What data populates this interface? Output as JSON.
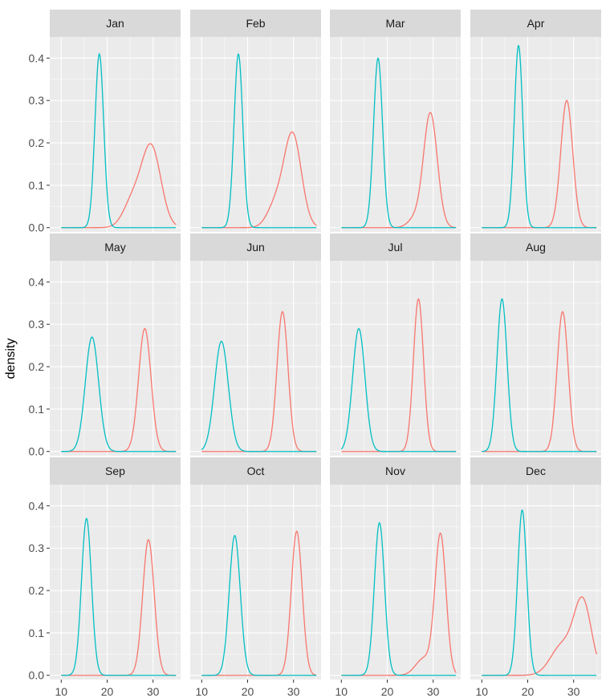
{
  "chart_data": {
    "type": "line",
    "chart_kind": "faceted density plot",
    "ylabel": "density",
    "xlabel": "",
    "xlim": [
      7.5,
      36
    ],
    "ylim": [
      -0.01,
      0.45
    ],
    "x_ticks": [
      10,
      20,
      30
    ],
    "y_ticks": [
      0.0,
      0.1,
      0.2,
      0.3,
      0.4
    ],
    "y_tick_labels": [
      "0.0",
      "0.1",
      "0.2",
      "0.3",
      "0.4"
    ],
    "x_support": [
      10,
      35
    ],
    "grid": true,
    "legend": "none",
    "colors": {
      "red_series": "#F8766D",
      "teal_series": "#00BFC4"
    },
    "facets": [
      {
        "label": "Jan",
        "series": [
          {
            "color": "#00BFC4",
            "peak_x": 18.3,
            "peak_y": 0.41,
            "sd": 0.95,
            "shoulder": null
          },
          {
            "color": "#F8766D",
            "peak_x": 29.6,
            "peak_y": 0.19,
            "sd": 2.1,
            "shoulder": {
              "x": 25.5,
              "y": 0.06,
              "sd": 2.0
            }
          }
        ]
      },
      {
        "label": "Feb",
        "series": [
          {
            "color": "#00BFC4",
            "peak_x": 18.0,
            "peak_y": 0.41,
            "sd": 0.95,
            "shoulder": null
          },
          {
            "color": "#F8766D",
            "peak_x": 29.8,
            "peak_y": 0.22,
            "sd": 1.9,
            "shoulder": {
              "x": 26.0,
              "y": 0.05,
              "sd": 1.8
            }
          }
        ]
      },
      {
        "label": "Mar",
        "series": [
          {
            "color": "#00BFC4",
            "peak_x": 18.0,
            "peak_y": 0.4,
            "sd": 0.98,
            "shoulder": null
          },
          {
            "color": "#F8766D",
            "peak_x": 29.4,
            "peak_y": 0.27,
            "sd": 1.5,
            "shoulder": {
              "x": 26.0,
              "y": 0.02,
              "sd": 1.5
            }
          }
        ]
      },
      {
        "label": "Apr",
        "series": [
          {
            "color": "#00BFC4",
            "peak_x": 18.0,
            "peak_y": 0.43,
            "sd": 0.92,
            "shoulder": null
          },
          {
            "color": "#F8766D",
            "peak_x": 28.5,
            "peak_y": 0.3,
            "sd": 1.3,
            "shoulder": null
          }
        ]
      },
      {
        "label": "May",
        "series": [
          {
            "color": "#00BFC4",
            "peak_x": 16.7,
            "peak_y": 0.27,
            "sd": 1.45,
            "shoulder": null
          },
          {
            "color": "#F8766D",
            "peak_x": 28.2,
            "peak_y": 0.29,
            "sd": 1.35,
            "shoulder": null
          }
        ]
      },
      {
        "label": "Jun",
        "series": [
          {
            "color": "#00BFC4",
            "peak_x": 14.3,
            "peak_y": 0.26,
            "sd": 1.5,
            "shoulder": null
          },
          {
            "color": "#F8766D",
            "peak_x": 27.6,
            "peak_y": 0.33,
            "sd": 1.2,
            "shoulder": null
          }
        ]
      },
      {
        "label": "Jul",
        "series": [
          {
            "color": "#00BFC4",
            "peak_x": 13.8,
            "peak_y": 0.29,
            "sd": 1.35,
            "shoulder": null
          },
          {
            "color": "#F8766D",
            "peak_x": 26.8,
            "peak_y": 0.36,
            "sd": 1.1,
            "shoulder": null
          }
        ]
      },
      {
        "label": "Aug",
        "series": [
          {
            "color": "#00BFC4",
            "peak_x": 14.4,
            "peak_y": 0.36,
            "sd": 1.1,
            "shoulder": null
          },
          {
            "color": "#F8766D",
            "peak_x": 27.6,
            "peak_y": 0.33,
            "sd": 1.2,
            "shoulder": null
          }
        ]
      },
      {
        "label": "Sep",
        "series": [
          {
            "color": "#00BFC4",
            "peak_x": 15.5,
            "peak_y": 0.37,
            "sd": 1.08,
            "shoulder": null
          },
          {
            "color": "#F8766D",
            "peak_x": 29.0,
            "peak_y": 0.32,
            "sd": 1.25,
            "shoulder": null
          }
        ]
      },
      {
        "label": "Oct",
        "series": [
          {
            "color": "#00BFC4",
            "peak_x": 17.2,
            "peak_y": 0.33,
            "sd": 1.2,
            "shoulder": null
          },
          {
            "color": "#F8766D",
            "peak_x": 30.7,
            "peak_y": 0.34,
            "sd": 1.18,
            "shoulder": null
          }
        ]
      },
      {
        "label": "Nov",
        "series": [
          {
            "color": "#00BFC4",
            "peak_x": 18.3,
            "peak_y": 0.36,
            "sd": 1.1,
            "shoulder": null
          },
          {
            "color": "#F8766D",
            "peak_x": 31.6,
            "peak_y": 0.33,
            "sd": 1.2,
            "shoulder": {
              "x": 28.0,
              "y": 0.04,
              "sd": 1.8
            }
          }
        ]
      },
      {
        "label": "Dec",
        "series": [
          {
            "color": "#00BFC4",
            "peak_x": 18.8,
            "peak_y": 0.39,
            "sd": 1.0,
            "shoulder": null
          },
          {
            "color": "#F8766D",
            "peak_x": 32.0,
            "peak_y": 0.17,
            "sd": 1.9,
            "shoulder": {
              "x": 27.5,
              "y": 0.07,
              "sd": 2.5
            }
          }
        ]
      }
    ]
  }
}
